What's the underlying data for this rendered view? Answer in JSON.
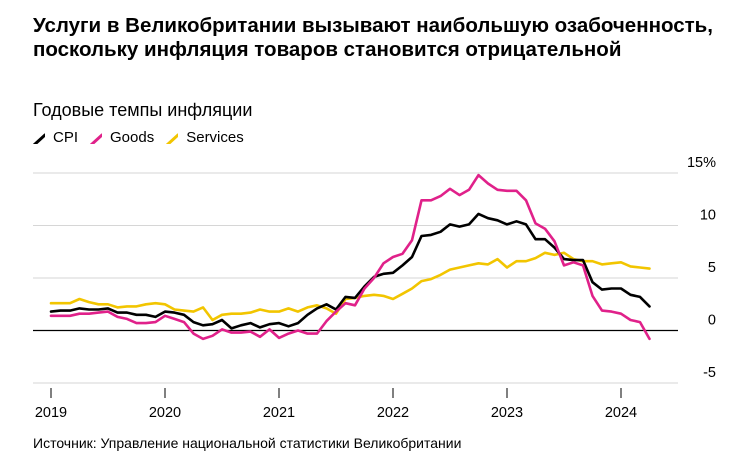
{
  "title": "Услуги в Великобритании вызывают наибольшую озабоченность, поскольку инфляция товаров становится отрицательной",
  "subtitle": "Годовые темпы инфляции",
  "source": "Источник: Управление национальной статистики Великобритании",
  "chart_data": {
    "type": "line",
    "title": "Услуги в Великобритании вызывают наибольшую озабоченность, поскольку инфляция товаров становится отрицательной",
    "subtitle": "Годовые темпы инфляции",
    "xlabel": "",
    "ylabel": "",
    "xlim": [
      2019.0,
      2024.5
    ],
    "ylim": [
      -5,
      15
    ],
    "y_ticks": [
      15,
      10,
      5,
      0,
      -5
    ],
    "y_tick_labels": [
      "15%",
      "10",
      "5",
      "0",
      "-5"
    ],
    "x_ticks": [
      2019,
      2020,
      2021,
      2022,
      2023,
      2024
    ],
    "x_tick_labels": [
      "2019",
      "2020",
      "2021",
      "2022",
      "2023",
      "2024"
    ],
    "grid": true,
    "legend": "top-left",
    "series": [
      {
        "name": "CPI",
        "color": "#000000",
        "x": [
          2019.0,
          2019.083,
          2019.167,
          2019.25,
          2019.333,
          2019.417,
          2019.5,
          2019.583,
          2019.667,
          2019.75,
          2019.833,
          2019.917,
          2020.0,
          2020.083,
          2020.167,
          2020.25,
          2020.333,
          2020.417,
          2020.5,
          2020.583,
          2020.667,
          2020.75,
          2020.833,
          2020.917,
          2021.0,
          2021.083,
          2021.167,
          2021.25,
          2021.333,
          2021.417,
          2021.5,
          2021.583,
          2021.667,
          2021.75,
          2021.833,
          2021.917,
          2022.0,
          2022.083,
          2022.167,
          2022.25,
          2022.333,
          2022.417,
          2022.5,
          2022.583,
          2022.667,
          2022.75,
          2022.833,
          2022.917,
          2023.0,
          2023.083,
          2023.167,
          2023.25,
          2023.333,
          2023.417,
          2023.5,
          2023.583,
          2023.667,
          2023.75,
          2023.833,
          2023.917,
          2024.0,
          2024.083,
          2024.167,
          2024.25
        ],
        "values": [
          1.8,
          1.9,
          1.9,
          2.1,
          2.0,
          2.0,
          2.1,
          1.7,
          1.7,
          1.5,
          1.5,
          1.3,
          1.8,
          1.7,
          1.5,
          0.8,
          0.5,
          0.6,
          1.0,
          0.2,
          0.5,
          0.7,
          0.3,
          0.6,
          0.7,
          0.4,
          0.7,
          1.5,
          2.1,
          2.5,
          2.0,
          3.2,
          3.1,
          4.2,
          5.1,
          5.4,
          5.5,
          6.2,
          7.0,
          9.0,
          9.1,
          9.4,
          10.1,
          9.9,
          10.1,
          11.1,
          10.7,
          10.5,
          10.1,
          10.4,
          10.1,
          8.7,
          8.7,
          7.9,
          6.8,
          6.7,
          6.7,
          4.6,
          3.9,
          4.0,
          4.0,
          3.4,
          3.2,
          2.3
        ]
      },
      {
        "name": "Goods",
        "color": "#e0218a",
        "x": [
          2019.0,
          2019.083,
          2019.167,
          2019.25,
          2019.333,
          2019.417,
          2019.5,
          2019.583,
          2019.667,
          2019.75,
          2019.833,
          2019.917,
          2020.0,
          2020.083,
          2020.167,
          2020.25,
          2020.333,
          2020.417,
          2020.5,
          2020.583,
          2020.667,
          2020.75,
          2020.833,
          2020.917,
          2021.0,
          2021.083,
          2021.167,
          2021.25,
          2021.333,
          2021.417,
          2021.5,
          2021.583,
          2021.667,
          2021.75,
          2021.833,
          2021.917,
          2022.0,
          2022.083,
          2022.167,
          2022.25,
          2022.333,
          2022.417,
          2022.5,
          2022.583,
          2022.667,
          2022.75,
          2022.833,
          2022.917,
          2023.0,
          2023.083,
          2023.167,
          2023.25,
          2023.333,
          2023.417,
          2023.5,
          2023.583,
          2023.667,
          2023.75,
          2023.833,
          2023.917,
          2024.0,
          2024.083,
          2024.167,
          2024.25
        ],
        "values": [
          1.4,
          1.4,
          1.4,
          1.6,
          1.6,
          1.7,
          1.8,
          1.3,
          1.1,
          0.7,
          0.7,
          0.8,
          1.4,
          1.1,
          0.8,
          -0.3,
          -0.8,
          -0.5,
          0.1,
          -0.2,
          -0.2,
          -0.1,
          -0.6,
          0.1,
          -0.7,
          -0.3,
          0.0,
          -0.3,
          -0.3,
          0.9,
          1.8,
          2.6,
          2.4,
          4.0,
          5.0,
          6.4,
          7.0,
          7.3,
          8.6,
          12.4,
          12.4,
          12.8,
          13.5,
          12.9,
          13.4,
          14.8,
          14.0,
          13.4,
          13.3,
          13.3,
          12.4,
          10.2,
          9.7,
          8.5,
          6.2,
          6.5,
          6.2,
          3.3,
          1.9,
          1.8,
          1.6,
          1.0,
          0.8,
          -0.8
        ]
      },
      {
        "name": "Services",
        "color": "#f2c500",
        "x": [
          2019.0,
          2019.083,
          2019.167,
          2019.25,
          2019.333,
          2019.417,
          2019.5,
          2019.583,
          2019.667,
          2019.75,
          2019.833,
          2019.917,
          2020.0,
          2020.083,
          2020.167,
          2020.25,
          2020.333,
          2020.417,
          2020.5,
          2020.583,
          2020.667,
          2020.75,
          2020.833,
          2020.917,
          2021.0,
          2021.083,
          2021.167,
          2021.25,
          2021.333,
          2021.417,
          2021.5,
          2021.583,
          2021.667,
          2021.75,
          2021.833,
          2021.917,
          2022.0,
          2022.083,
          2022.167,
          2022.25,
          2022.333,
          2022.417,
          2022.5,
          2022.583,
          2022.667,
          2022.75,
          2022.833,
          2022.917,
          2023.0,
          2023.083,
          2023.167,
          2023.25,
          2023.333,
          2023.417,
          2023.5,
          2023.583,
          2023.667,
          2023.75,
          2023.833,
          2023.917,
          2024.0,
          2024.083,
          2024.167,
          2024.25
        ],
        "values": [
          2.6,
          2.6,
          2.6,
          3.0,
          2.7,
          2.5,
          2.5,
          2.2,
          2.3,
          2.3,
          2.5,
          2.6,
          2.5,
          2.0,
          1.9,
          1.8,
          2.2,
          1.0,
          1.5,
          1.6,
          1.6,
          1.7,
          2.0,
          1.8,
          1.8,
          2.1,
          1.8,
          2.2,
          2.4,
          2.1,
          1.6,
          3.0,
          3.1,
          3.3,
          3.4,
          3.3,
          3.0,
          3.5,
          4.0,
          4.7,
          4.9,
          5.3,
          5.8,
          6.0,
          6.2,
          6.4,
          6.3,
          6.8,
          6.0,
          6.6,
          6.6,
          6.9,
          7.4,
          7.2,
          7.4,
          6.8,
          6.6,
          6.6,
          6.3,
          6.4,
          6.5,
          6.1,
          6.0,
          5.9
        ]
      }
    ]
  }
}
